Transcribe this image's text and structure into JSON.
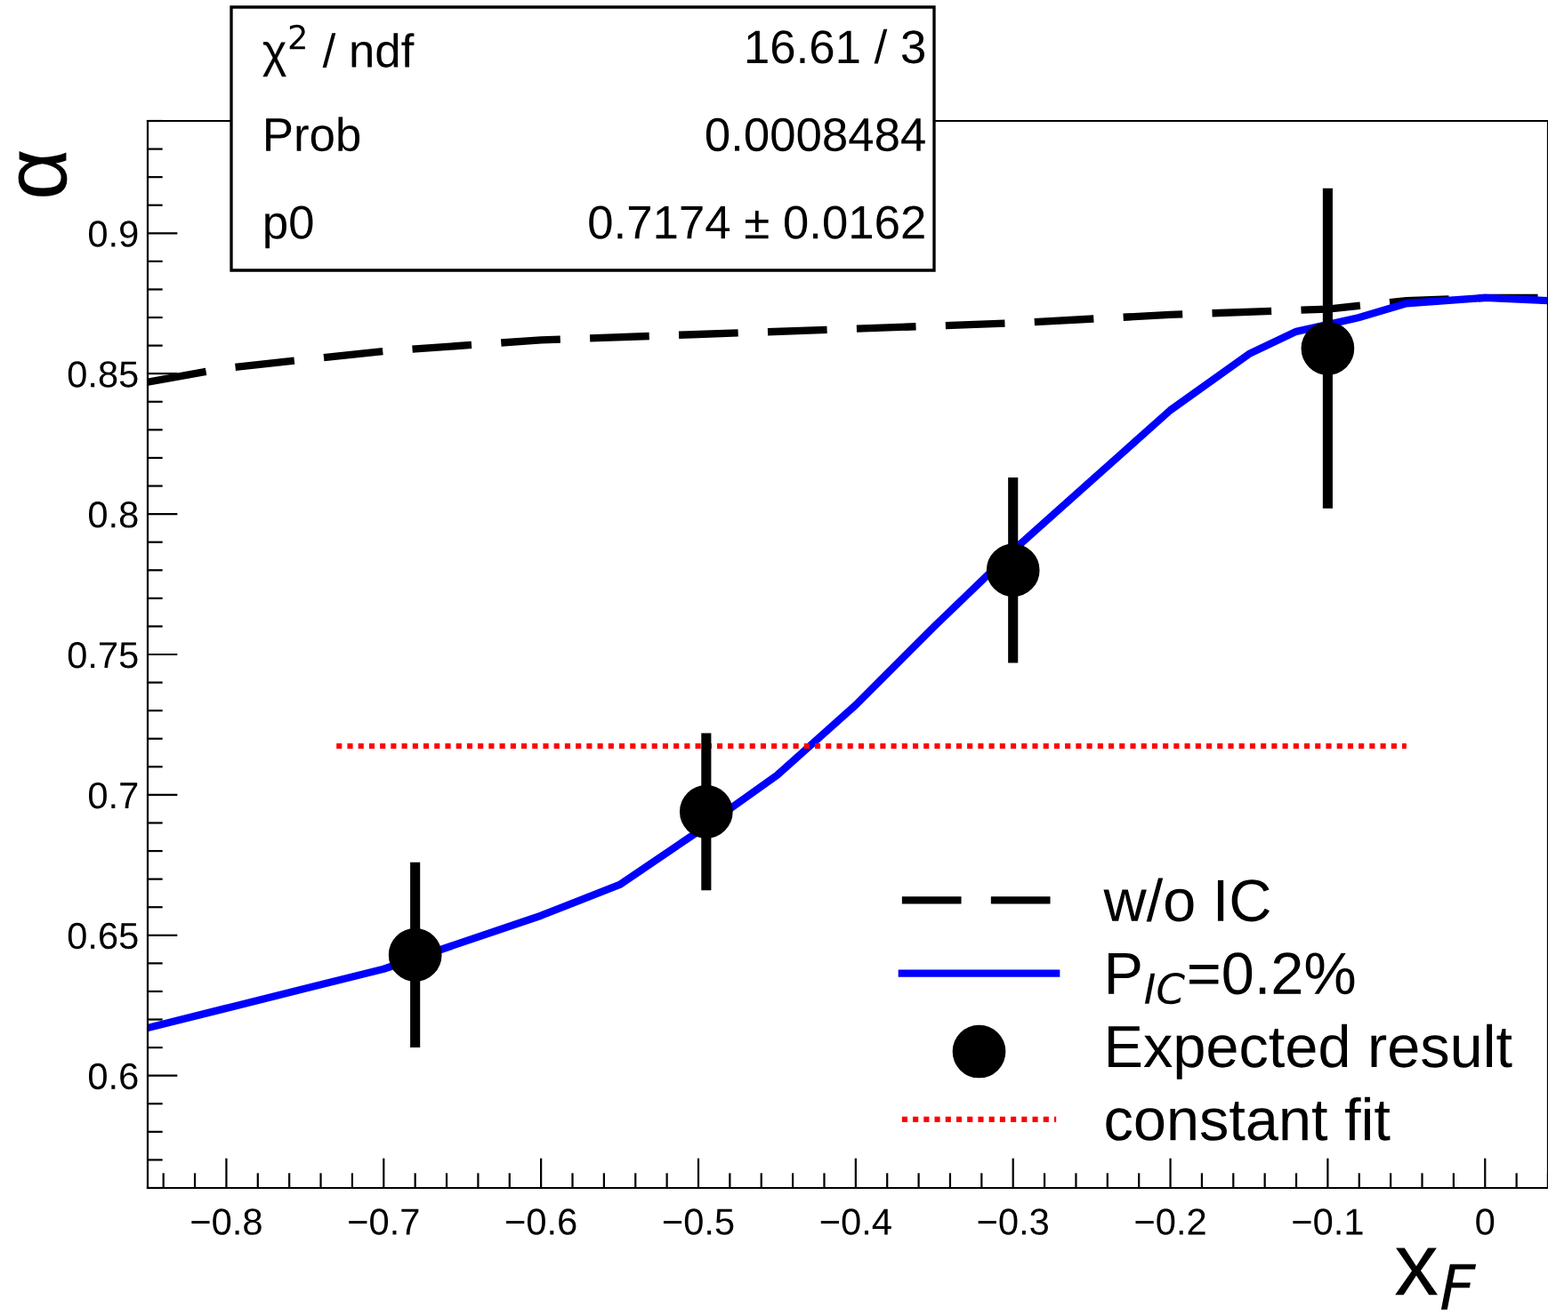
{
  "chart_data": {
    "type": "line",
    "xlabel": "x$_{F}$",
    "ylabel": "α",
    "xlim": [
      -0.85,
      0.04
    ],
    "xticks": [
      {
        "value": -0.8,
        "label": "−0.8"
      },
      {
        "value": -0.7,
        "label": "−0.7"
      },
      {
        "value": -0.6,
        "label": "−0.6"
      },
      {
        "value": -0.5,
        "label": "−0.5"
      },
      {
        "value": -0.4,
        "label": "−0.4"
      },
      {
        "value": -0.3,
        "label": "−0.3"
      },
      {
        "value": -0.2,
        "label": "−0.2"
      },
      {
        "value": -0.1,
        "label": "−0.1"
      },
      0
    ],
    "ylim": [
      0.56,
      0.94
    ],
    "yticks": [
      0.6,
      0.65,
      0.7,
      0.75,
      0.8,
      0.85,
      0.9
    ],
    "grid": false,
    "legend": "bottom right",
    "annotations": [
      "χ$^{2}$ / ndf",
      "16.61 / 3",
      "Prob",
      "0.0008484",
      "p0",
      "0.7174 ± 0.0162"
    ],
    "series": [
      {
        "name": "w/o IC",
        "color": "#000000",
        "line_style": "dashed",
        "x": [
          -0.85,
          -0.8,
          -0.75,
          -0.7,
          -0.6,
          -0.5,
          -0.4,
          -0.3,
          -0.2,
          -0.1,
          -0.05,
          0,
          0.04
        ],
        "values": [
          0.847,
          0.852,
          0.855,
          0.858,
          0.862,
          0.864,
          0.866,
          0.868,
          0.871,
          0.873,
          0.876,
          0.877,
          0.877
        ]
      },
      {
        "name": "P$_{IC}$=0.2%",
        "color": "#0000ff",
        "line_style": "solid",
        "x": [
          -0.85,
          -0.8,
          -0.75,
          -0.7,
          -0.6,
          -0.55,
          -0.5,
          -0.45,
          -0.4,
          -0.35,
          -0.3,
          -0.25,
          -0.2,
          -0.15,
          -0.12,
          -0.08,
          -0.05,
          0,
          0.04
        ],
        "values": [
          0.617,
          0.624,
          0.631,
          0.638,
          0.657,
          0.668,
          0.687,
          0.707,
          0.732,
          0.76,
          0.787,
          0.812,
          0.837,
          0.857,
          0.865,
          0.87,
          0.875,
          0.877,
          0.876
        ]
      },
      {
        "name": "Expected result",
        "type": "scatter",
        "color": "#000000",
        "marker": "circle",
        "x": [
          -0.68,
          -0.495,
          -0.3,
          -0.1
        ],
        "values": [
          0.643,
          0.694,
          0.78,
          0.859
        ],
        "errors": [
          0.033,
          0.028,
          0.033,
          0.057
        ]
      },
      {
        "name": "constant fit",
        "color": "#ff0000",
        "line_style": "dotted",
        "x": [
          -0.73,
          -0.05
        ],
        "values": [
          0.7174,
          0.7174
        ]
      }
    ]
  }
}
